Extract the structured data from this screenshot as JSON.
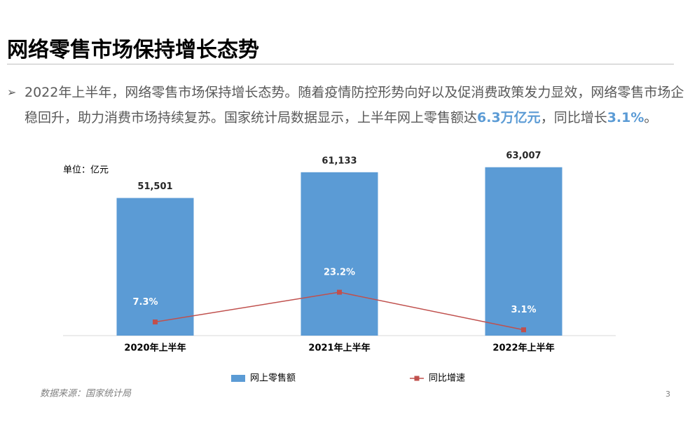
{
  "header": {
    "title": "网络零售市场保持增长态势"
  },
  "body": {
    "segments": [
      {
        "text": "2022年上半年，网络零售市场保持增长态势。随着疫情防控形势向好以及促消费政策发力显效，网络零售市场企稳回升，助力消费市场持续复苏。国家统计局数据显示，上半年网上零售额达",
        "highlight": false
      },
      {
        "text": "6.3万亿元",
        "highlight": true
      },
      {
        "text": "，同比增长",
        "highlight": false
      },
      {
        "text": "3.1%",
        "highlight": true
      },
      {
        "text": "。",
        "highlight": false
      }
    ]
  },
  "chart_data": {
    "type": "combo",
    "unit_label": "单位：亿元",
    "categories": [
      "2020年上半年",
      "2021年上半年",
      "2022年上半年"
    ],
    "series": [
      {
        "name": "网上零售额",
        "type": "bar",
        "color": "#5b9bd5",
        "values": [
          51501,
          61133,
          63007
        ],
        "value_labels": [
          "51,501",
          "61,133",
          "63,007"
        ]
      },
      {
        "name": "同比增速",
        "type": "line",
        "axis": "y2",
        "color": "#c0504d",
        "values": [
          7.3,
          23.2,
          3.1
        ],
        "value_labels": [
          "7.3%",
          "23.2%",
          "3.1%"
        ]
      }
    ],
    "ylim": [
      0,
      70000
    ],
    "y2lim": [
      0,
      100
    ],
    "legend": "bottom"
  },
  "footer": {
    "source": "数据来源：国家统计局",
    "page_number": 3
  }
}
